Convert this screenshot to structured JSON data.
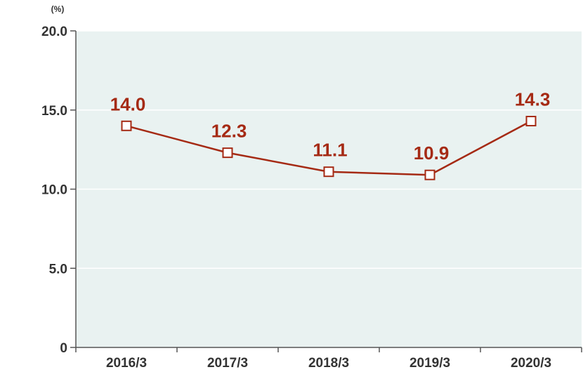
{
  "chart_data": {
    "type": "line",
    "unit_label": "(%)",
    "categories": [
      "2016/3",
      "2017/3",
      "2018/3",
      "2019/3",
      "2020/3"
    ],
    "series": [
      {
        "values": [
          14.0,
          12.3,
          11.1,
          10.9,
          14.3
        ],
        "labels": [
          "14.0",
          "12.3",
          "11.1",
          "10.9",
          "14.3"
        ]
      }
    ],
    "ylim": [
      0,
      20
    ],
    "yticks": [
      0,
      5.0,
      10.0,
      15.0,
      20.0
    ],
    "ytick_labels": [
      "0",
      "5.0",
      "10.0",
      "15.0",
      "20.0"
    ],
    "grid": true,
    "legend": "none",
    "colors": {
      "line": "#a52a14",
      "marker_fill": "#ffffff",
      "plot_background": "#e9f2f1",
      "grid": "#ffffff",
      "axis": "#555555",
      "text": "#333333"
    }
  }
}
